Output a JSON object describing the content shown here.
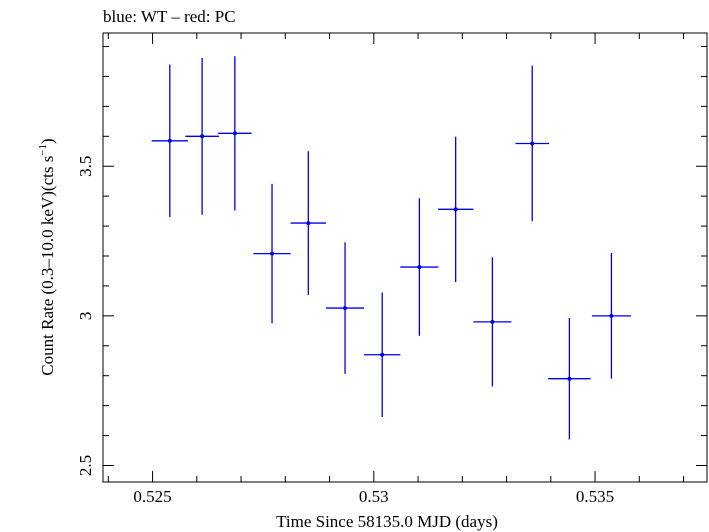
{
  "chart_data": {
    "type": "scatter",
    "title": "blue: WT – red: PC",
    "xlabel": "Time Since 58135.0 MJD (days)",
    "ylabel_main": "Count Rate (0.3–10.0 keV)(cts s",
    "ylabel_sup": "−1",
    "ylabel_close": ")",
    "xlim": [
      0.52388,
      0.53753
    ],
    "ylim": [
      2.4448,
      3.9452
    ],
    "xticks": [
      0.525,
      0.53,
      0.535
    ],
    "xtick_labels": [
      "0.525",
      "0.53",
      "0.535"
    ],
    "yticks": [
      2.5,
      3,
      3.5
    ],
    "ytick_labels": [
      "2.5",
      "3",
      "3.5"
    ],
    "x_minor_step": 0.001,
    "y_minor_step": 0.1,
    "grid": false,
    "series": [
      {
        "color": "#0000ee",
        "points": [
          {
            "x": 0.52539,
            "xerr": 0.00041,
            "y": 3.585,
            "yerr": 0.255
          },
          {
            "x": 0.52612,
            "xerr": 0.00038,
            "y": 3.6,
            "yerr": 0.262
          },
          {
            "x": 0.52686,
            "xerr": 0.00038,
            "y": 3.61,
            "yerr": 0.258
          },
          {
            "x": 0.5277,
            "xerr": 0.00042,
            "y": 3.208,
            "yerr": 0.233
          },
          {
            "x": 0.52852,
            "xerr": 0.0004,
            "y": 3.31,
            "yerr": 0.24
          },
          {
            "x": 0.52935,
            "xerr": 0.00043,
            "y": 3.026,
            "yerr": 0.22
          },
          {
            "x": 0.53019,
            "xerr": 0.00041,
            "y": 2.87,
            "yerr": 0.208
          },
          {
            "x": 0.53103,
            "xerr": 0.00043,
            "y": 3.163,
            "yerr": 0.23
          },
          {
            "x": 0.53185,
            "xerr": 0.0004,
            "y": 3.356,
            "yerr": 0.243
          },
          {
            "x": 0.53268,
            "xerr": 0.00043,
            "y": 2.98,
            "yerr": 0.216
          },
          {
            "x": 0.53358,
            "xerr": 0.00038,
            "y": 3.576,
            "yerr": 0.26
          },
          {
            "x": 0.53442,
            "xerr": 0.00048,
            "y": 2.79,
            "yerr": 0.203
          },
          {
            "x": 0.53537,
            "xerr": 0.00044,
            "y": 3.0,
            "yerr": 0.21
          }
        ]
      }
    ]
  }
}
